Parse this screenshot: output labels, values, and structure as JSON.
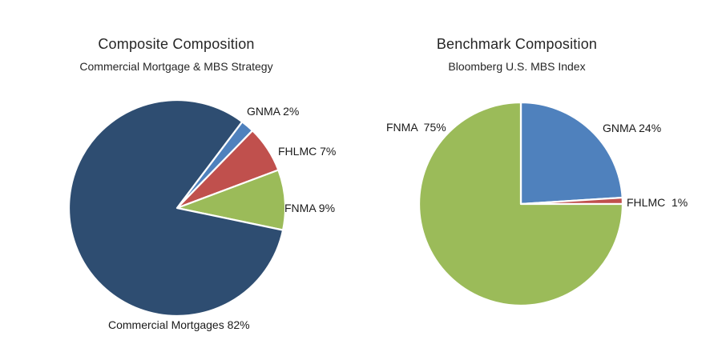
{
  "colors": {
    "gnma_blue": "#4F81BD",
    "fhlmc_red": "#C0504D",
    "fnma_green": "#9BBB59",
    "commercial_navy": "#2E4D71",
    "slice_border": "#FFFFFF",
    "text": "#262626"
  },
  "chart_data": [
    {
      "type": "pie",
      "title": "Composite Composition",
      "subtitle": "Commercial Mortgage & MBS Strategy",
      "legend": "none",
      "labels_position": "outside-end",
      "start_angle_deg": 37,
      "slices": [
        {
          "name": "GNMA",
          "value": 2,
          "label": "GNMA 2%",
          "color": "#4F81BD"
        },
        {
          "name": "FHLMC",
          "value": 7,
          "label": "FHLMC 7%",
          "color": "#C0504D"
        },
        {
          "name": "FNMA",
          "value": 9,
          "label": "FNMA 9%",
          "color": "#9BBB59"
        },
        {
          "name": "Commercial Mortgages",
          "value": 82,
          "label": "Commercial Mortgages 82%",
          "color": "#2E4D71"
        }
      ]
    },
    {
      "type": "pie",
      "title": "Benchmark Composition",
      "subtitle": "Bloomberg U.S. MBS Index",
      "legend": "none",
      "labels_position": "outside-end",
      "start_angle_deg": 0,
      "slices": [
        {
          "name": "GNMA",
          "value": 24,
          "label": "GNMA 24%",
          "color": "#4F81BD"
        },
        {
          "name": "FHLMC",
          "value": 1,
          "label": "FHLMC  1%",
          "color": "#C0504D"
        },
        {
          "name": "FNMA",
          "value": 75,
          "label": "FNMA  75%",
          "color": "#9BBB59"
        }
      ]
    }
  ]
}
